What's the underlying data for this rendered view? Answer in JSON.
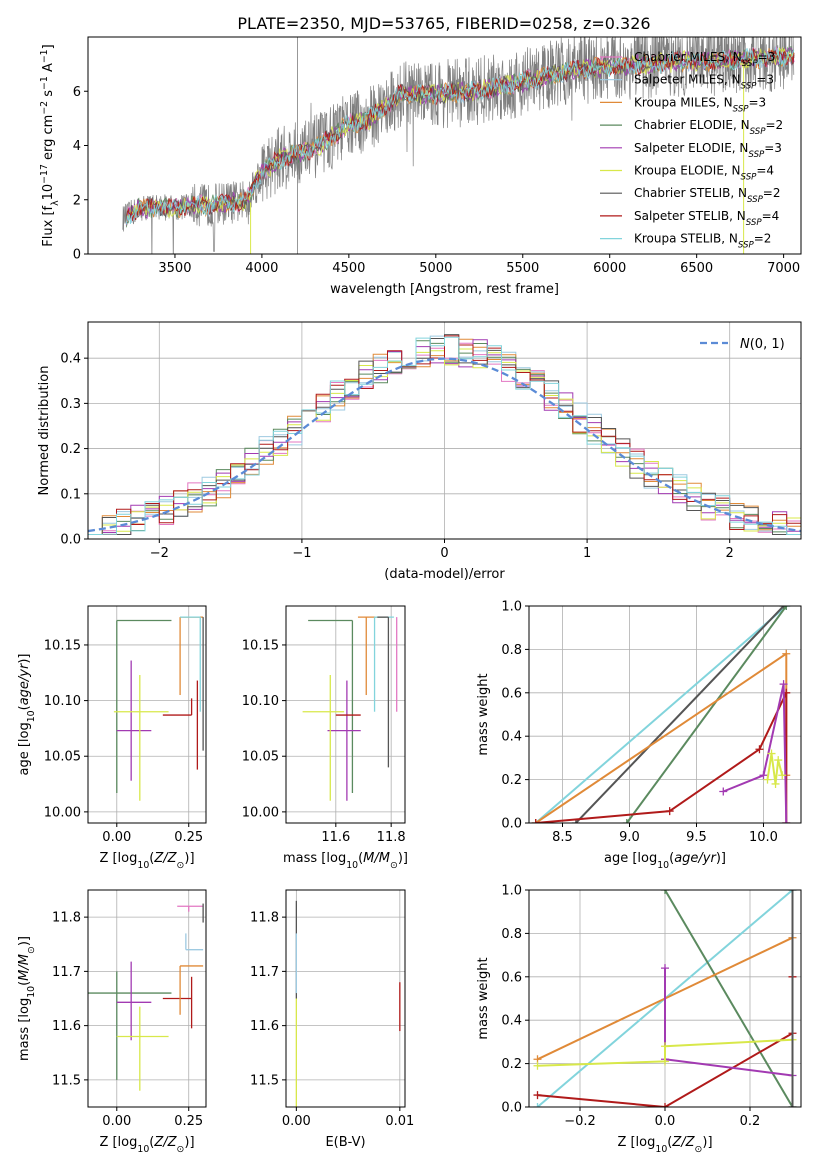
{
  "figure_title": "PLATE=2350, MJD=53765, FIBERID=0258, z=0.326",
  "colors": {
    "Chabrier MILES": "#e377c2",
    "Salpeter MILES": "#9ecae1",
    "Kroupa MILES": "#e08a38",
    "Chabrier ELODIE": "#5b8a5f",
    "Salpeter ELODIE": "#a23ab2",
    "Kroupa ELODIE": "#d8e84a",
    "Chabrier STELIB": "#555555",
    "Salpeter STELIB": "#b01a1a",
    "Kroupa STELIB": "#82d4dc",
    "normal_curve": "#5b8bd6",
    "grid": "#b0b0b0"
  },
  "chart_data": [
    {
      "id": "spectrum",
      "type": "line",
      "xlabel": "wavelength [Angstrom, rest frame]",
      "ylabel": "Flux [f_λ 10^-17 erg cm^-2 s^-1 A^-1]",
      "xlim": [
        3000,
        7100
      ],
      "ylim": [
        0,
        8
      ],
      "xticks": [
        "3500",
        "4000",
        "4500",
        "5000",
        "5500",
        "6000",
        "6500",
        "7000"
      ],
      "yticks": [
        "0",
        "2",
        "4",
        "6"
      ],
      "grid": false,
      "legend_position": "right",
      "legend": [
        {
          "base": "Chabrier MILES, N",
          "sub": "SSP",
          "tail": "=3"
        },
        {
          "base": "Salpeter MILES, N",
          "sub": "SSP",
          "tail": "=3"
        },
        {
          "base": "Kroupa MILES, N",
          "sub": "SSP",
          "tail": "=3"
        },
        {
          "base": "Chabrier ELODIE, N",
          "sub": "SSP",
          "tail": "=2"
        },
        {
          "base": "Salpeter ELODIE, N",
          "sub": "SSP",
          "tail": "=3"
        },
        {
          "base": "Kroupa ELODIE, N",
          "sub": "SSP",
          "tail": "=4"
        },
        {
          "base": "Chabrier STELIB, N",
          "sub": "SSP",
          "tail": "=2"
        },
        {
          "base": "Salpeter STELIB, N",
          "sub": "SSP",
          "tail": "=4"
        },
        {
          "base": "Kroupa STELIB, N",
          "sub": "SSP",
          "tail": "=2"
        }
      ],
      "continuum_points": {
        "x": [
          3200,
          3300,
          3400,
          3500,
          3600,
          3700,
          3800,
          3900,
          4000,
          4100,
          4200,
          4300,
          4400,
          4500,
          4600,
          4700,
          4800,
          4900,
          5000,
          5200,
          5400,
          5600,
          5800,
          6000,
          6200,
          6400,
          6600,
          6800,
          7000
        ],
        "y": [
          1.3,
          1.7,
          1.75,
          1.7,
          1.8,
          1.8,
          1.9,
          1.9,
          3.0,
          3.5,
          3.7,
          3.9,
          4.3,
          4.8,
          4.9,
          5.4,
          5.9,
          5.9,
          5.9,
          6.0,
          6.2,
          6.5,
          6.8,
          6.9,
          7.0,
          7.1,
          7.1,
          7.2,
          7.3
        ]
      }
    },
    {
      "id": "residuals",
      "type": "histogram",
      "xlabel": "(data-model)/error",
      "ylabel": "Normed distribution",
      "xlim": [
        -2.5,
        2.5
      ],
      "ylim": [
        0,
        0.48
      ],
      "xticks": [
        "−2",
        "−1",
        "0",
        "1",
        "2"
      ],
      "yticks": [
        "0.0",
        "0.1",
        "0.2",
        "0.3",
        "0.4"
      ],
      "grid": true,
      "legend": "N(0,1)",
      "legend_position": "top-right",
      "curve": "normal pdf, mean 0, sigma 1",
      "bin_width": 0.1
    },
    {
      "id": "age_vs_Z",
      "type": "errorbar",
      "xlabel": "Z [log10(Z/Z⊙)]",
      "ylabel": "age  [log10(age/yr)]",
      "xlim": [
        -0.1,
        0.31
      ],
      "ylim": [
        9.99,
        10.185
      ],
      "xticks": [
        "0.00",
        "0.25"
      ],
      "yticks": [
        "10.00",
        "10.05",
        "10.10",
        "10.15"
      ],
      "grid": true,
      "points": [
        {
          "series": "Chabrier ELODIE",
          "x": 0.0,
          "y": 10.172,
          "xerr": [
            0.0,
            0.19
          ],
          "yerr": [
            0.155,
            0.0
          ]
        },
        {
          "series": "Kroupa MILES",
          "x": 0.22,
          "y": 10.175,
          "xerr": [
            0.0,
            0.08
          ],
          "yerr": [
            0.07,
            0.0
          ]
        },
        {
          "series": "Kroupa STELIB",
          "x": 0.29,
          "y": 10.175,
          "xerr": [
            0.07,
            0.0
          ],
          "yerr": [
            0.085,
            0.0
          ]
        },
        {
          "series": "Salpeter ELODIE",
          "x": 0.05,
          "y": 10.073,
          "xerr": [
            0.05,
            0.07
          ],
          "yerr": [
            0.045,
            0.063
          ]
        },
        {
          "series": "Kroupa ELODIE",
          "x": 0.08,
          "y": 10.09,
          "xerr": [
            0.09,
            0.1
          ],
          "yerr": [
            0.08,
            0.033
          ]
        },
        {
          "series": "Salpeter STELIB",
          "x": 0.26,
          "y": 10.087,
          "xerr": [
            0.1,
            0.0
          ],
          "yerr": [
            0.0,
            0.015
          ]
        },
        {
          "series": "Salpeter STELIB",
          "x": 0.28,
          "y": 10.088,
          "xerr": [
            0.0,
            0.0
          ],
          "yerr": [
            0.05,
            0.03
          ]
        },
        {
          "series": "Chabrier STELIB",
          "x": 0.3,
          "y": 10.175,
          "xerr": [
            0.0,
            0.0
          ],
          "yerr": [
            0.12,
            0.0
          ]
        }
      ]
    },
    {
      "id": "age_vs_mass",
      "type": "errorbar",
      "xlabel": "mass [log10(M/M⊙)]",
      "ylabel": "",
      "xlim": [
        11.42,
        11.85
      ],
      "ylim": [
        9.99,
        10.185
      ],
      "xticks": [
        "11.6",
        "11.8"
      ],
      "yticks": [
        "10.00",
        "10.05",
        "10.10",
        "10.15"
      ],
      "grid": true,
      "points": [
        {
          "series": "Chabrier ELODIE",
          "x": 11.66,
          "y": 10.172,
          "xerr": [
            0.16,
            0.0
          ],
          "yerr": [
            0.155,
            0.0
          ]
        },
        {
          "series": "Kroupa MILES",
          "x": 11.71,
          "y": 10.175,
          "xerr": [
            0.03,
            0.07
          ],
          "yerr": [
            0.07,
            0.0
          ]
        },
        {
          "series": "Kroupa STELIB",
          "x": 11.74,
          "y": 10.175,
          "xerr": [
            0.0,
            0.07
          ],
          "yerr": [
            0.085,
            0.0
          ]
        },
        {
          "series": "Salpeter ELODIE",
          "x": 11.64,
          "y": 10.073,
          "xerr": [
            0.07,
            0.05
          ],
          "yerr": [
            0.063,
            0.045
          ]
        },
        {
          "series": "Kroupa ELODIE",
          "x": 11.58,
          "y": 10.09,
          "xerr": [
            0.1,
            0.05
          ],
          "yerr": [
            0.08,
            0.033
          ]
        },
        {
          "series": "Salpeter STELIB",
          "x": 11.65,
          "y": 10.087,
          "xerr": [
            0.05,
            0.04
          ],
          "yerr": [
            0.0,
            0.0
          ]
        },
        {
          "series": "Chabrier STELIB",
          "x": 11.79,
          "y": 10.175,
          "xerr": [
            0.04,
            0.0
          ],
          "yerr": [
            0.135,
            0.0
          ]
        },
        {
          "series": "Chabrier MILES",
          "x": 11.82,
          "y": 10.175,
          "xerr": [
            0.0,
            0.0
          ],
          "yerr": [
            0.085,
            0.0
          ]
        }
      ]
    },
    {
      "id": "mass_weight_vs_age",
      "type": "line",
      "xlabel": "age  [log10(age/yr)]",
      "ylabel": "mass weight",
      "xlim": [
        8.25,
        10.28
      ],
      "ylim": [
        0,
        1
      ],
      "xticks": [
        "8.5",
        "9.0",
        "9.5",
        "10.0"
      ],
      "yticks": [
        "0.0",
        "0.2",
        "0.4",
        "0.6",
        "0.8",
        "1.0"
      ],
      "grid": true,
      "series": [
        {
          "name": "Kroupa STELIB",
          "x": [
            8.3,
            10.17
          ],
          "y": [
            0.0,
            1.0
          ]
        },
        {
          "name": "Chabrier STELIB",
          "x": [
            8.6,
            10.15
          ],
          "y": [
            0.0,
            1.0
          ]
        },
        {
          "name": "Chabrier ELODIE",
          "x": [
            8.98,
            10.17
          ],
          "y": [
            0.0,
            1.0
          ]
        },
        {
          "name": "Kroupa MILES",
          "x": [
            8.3,
            10.17,
            10.17
          ],
          "y": [
            0.0,
            0.78,
            0.22
          ]
        },
        {
          "name": "Salpeter STELIB",
          "x": [
            8.3,
            9.3,
            9.97,
            10.17,
            10.17
          ],
          "y": [
            0.0,
            0.055,
            0.34,
            0.6,
            0.0
          ]
        },
        {
          "name": "Salpeter ELODIE",
          "x": [
            9.7,
            10.0,
            10.15,
            10.17
          ],
          "y": [
            0.145,
            0.22,
            0.64,
            0.0
          ]
        },
        {
          "name": "Kroupa ELODIE",
          "x": [
            10.03,
            10.06,
            10.09,
            10.11,
            10.14
          ],
          "y": [
            0.2,
            0.32,
            0.18,
            0.29,
            0.22
          ]
        }
      ]
    },
    {
      "id": "mass_vs_Z",
      "type": "errorbar",
      "xlabel": "Z [log10(Z/Z⊙)]",
      "ylabel": "mass [log10(M/M⊙)]",
      "xlim": [
        -0.1,
        0.31
      ],
      "ylim": [
        11.45,
        11.85
      ],
      "xticks": [
        "0.00",
        "0.25"
      ],
      "yticks": [
        "11.5",
        "11.6",
        "11.7",
        "11.8"
      ],
      "grid": true,
      "points": [
        {
          "series": "Chabrier ELODIE",
          "x": 0.0,
          "y": 11.66,
          "xerr": [
            0.1,
            0.19
          ],
          "yerr": [
            0.16,
            0.04
          ]
        },
        {
          "series": "Salpeter ELODIE",
          "x": 0.05,
          "y": 11.643,
          "xerr": [
            0.05,
            0.07
          ],
          "yerr": [
            0.07,
            0.075
          ]
        },
        {
          "series": "Kroupa ELODIE",
          "x": 0.08,
          "y": 11.58,
          "xerr": [
            0.08,
            0.1
          ],
          "yerr": [
            0.1,
            0.055
          ]
        },
        {
          "series": "Salpeter STELIB",
          "x": 0.26,
          "y": 11.65,
          "xerr": [
            0.1,
            0.0
          ],
          "yerr": [
            0.055,
            0.04
          ]
        },
        {
          "series": "Kroupa MILES",
          "x": 0.22,
          "y": 11.71,
          "xerr": [
            0.0,
            0.08
          ],
          "yerr": [
            0.09,
            0.0
          ]
        },
        {
          "series": "Salpeter MILES",
          "x": 0.24,
          "y": 11.74,
          "xerr": [
            0.0,
            0.06
          ],
          "yerr": [
            0.0,
            0.03
          ]
        },
        {
          "series": "Chabrier MILES",
          "x": 0.25,
          "y": 11.82,
          "xerr": [
            0.04,
            0.05
          ],
          "yerr": [
            0.01,
            0.0
          ]
        },
        {
          "series": "Chabrier STELIB",
          "x": 0.3,
          "y": 11.79,
          "xerr": [
            0.0,
            0.0
          ],
          "yerr": [
            0.0,
            0.035
          ]
        }
      ]
    },
    {
      "id": "mass_vs_EBV",
      "type": "errorbar",
      "xlabel": "E(B-V)",
      "ylabel": "",
      "xlim": [
        -0.001,
        0.0105
      ],
      "ylim": [
        11.45,
        11.85
      ],
      "xticks": [
        "0.00",
        "0.01"
      ],
      "yticks": [
        "11.5",
        "11.6",
        "11.7",
        "11.8"
      ],
      "grid": true,
      "points": [
        {
          "series": "Chabrier STELIB",
          "x": 0.0,
          "y": 11.75,
          "xerr": [
            0.0,
            0.0
          ],
          "yerr": [
            0.1,
            0.08
          ]
        },
        {
          "series": "Kroupa ELODIE",
          "x": 0.0,
          "y": 11.55,
          "xerr": [
            0.0,
            0.0
          ],
          "yerr": [
            0.1,
            0.1
          ]
        },
        {
          "series": "Salpeter MILES",
          "x": 0.0,
          "y": 11.71,
          "xerr": [
            0.0,
            0.0
          ],
          "yerr": [
            0.05,
            0.06
          ]
        },
        {
          "series": "Salpeter STELIB",
          "x": 0.01,
          "y": 11.635,
          "xerr": [
            0.0,
            0.0
          ],
          "yerr": [
            0.045,
            0.045
          ]
        }
      ]
    },
    {
      "id": "mass_weight_vs_Z",
      "type": "line",
      "xlabel": "Z [log10(Z/Z⊙)]",
      "ylabel": "mass weight",
      "xlim": [
        -0.32,
        0.32
      ],
      "ylim": [
        0,
        1
      ],
      "xticks": [
        "−0.2",
        "0.0",
        "0.2"
      ],
      "yticks": [
        "0.0",
        "0.2",
        "0.4",
        "0.6",
        "0.8",
        "1.0"
      ],
      "grid": true,
      "series": [
        {
          "name": "Kroupa STELIB",
          "x": [
            -0.3,
            0.3
          ],
          "y": [
            0.0,
            1.0
          ]
        },
        {
          "name": "Chabrier ELODIE",
          "x": [
            0.0,
            0.3
          ],
          "y": [
            1.0,
            0.0
          ]
        },
        {
          "name": "Kroupa MILES",
          "x": [
            -0.3,
            0.3
          ],
          "y": [
            0.22,
            0.78
          ]
        },
        {
          "name": "Salpeter STELIB",
          "x": [
            -0.3,
            0.0,
            0.3,
            0.3
          ],
          "y": [
            0.055,
            0.0,
            0.34,
            0.6
          ]
        },
        {
          "name": "Salpeter ELODIE",
          "x": [
            0.0,
            0.0,
            0.3
          ],
          "y": [
            0.64,
            0.22,
            0.145
          ]
        },
        {
          "name": "Kroupa ELODIE",
          "x": [
            -0.3,
            0.0,
            0.0,
            0.3
          ],
          "y": [
            0.19,
            0.21,
            0.28,
            0.31
          ]
        },
        {
          "name": "Chabrier STELIB",
          "x": [
            0.3,
            0.3
          ],
          "y": [
            0.0,
            1.0
          ]
        }
      ]
    }
  ]
}
